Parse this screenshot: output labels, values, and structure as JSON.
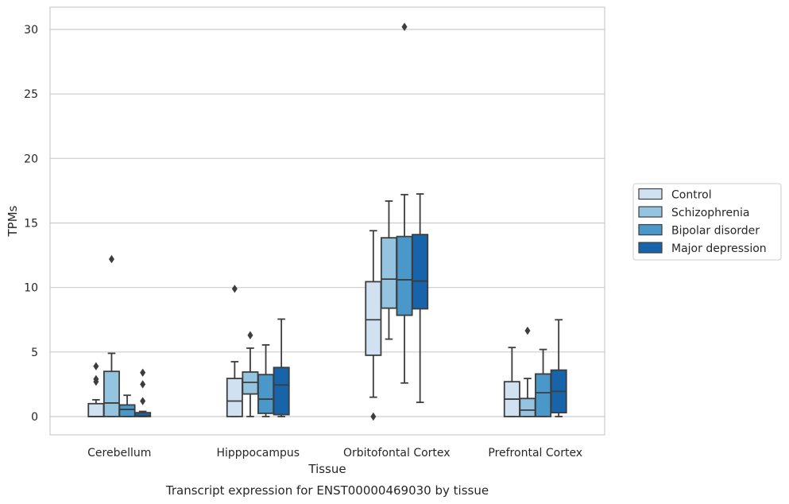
{
  "chart_data": {
    "type": "box",
    "caption": "Transcript expression for ENST00000469030 by tissue",
    "xlabel": "Tissue",
    "ylabel": "TPMs",
    "ylim": [
      -1.5,
      31.8
    ],
    "yticks": [
      0,
      5,
      10,
      15,
      20,
      25,
      30
    ],
    "grid": "horizontal",
    "legend_position": "right",
    "categories": [
      "Cerebellum",
      "Hipppocampus",
      "Orbitofontal Cortex",
      "Prefrontal Cortex"
    ],
    "series": [
      {
        "name": "Control",
        "color": "#d0e1f2",
        "boxes": [
          {
            "whislo": 0.0,
            "q1": 0.0,
            "med": 0.0,
            "q3": 1.0,
            "whishi": 1.3,
            "fliers": [
              2.7,
              2.9,
              3.9
            ]
          },
          {
            "whislo": 0.0,
            "q1": 0.0,
            "med": 1.2,
            "q3": 2.95,
            "whishi": 4.25,
            "fliers": [
              9.9
            ]
          },
          {
            "whislo": 1.5,
            "q1": 4.75,
            "med": 7.5,
            "q3": 10.45,
            "whishi": 14.4,
            "fliers": [
              0.0
            ]
          },
          {
            "whislo": 0.0,
            "q1": 0.0,
            "med": 1.35,
            "q3": 2.7,
            "whishi": 5.35,
            "fliers": []
          }
        ]
      },
      {
        "name": "Schizophrenia",
        "color": "#94c4df",
        "boxes": [
          {
            "whislo": 0.0,
            "q1": 0.0,
            "med": 1.05,
            "q3": 3.5,
            "whishi": 4.9,
            "fliers": [
              12.2
            ]
          },
          {
            "whislo": 0.0,
            "q1": 1.75,
            "med": 2.65,
            "q3": 3.45,
            "whishi": 5.3,
            "fliers": [
              6.3
            ]
          },
          {
            "whislo": 6.0,
            "q1": 8.4,
            "med": 10.65,
            "q3": 13.85,
            "whishi": 16.7,
            "fliers": []
          },
          {
            "whislo": 0.0,
            "q1": 0.0,
            "med": 0.5,
            "q3": 1.4,
            "whishi": 2.95,
            "fliers": [
              6.65
            ]
          }
        ]
      },
      {
        "name": "Bipolar disorder",
        "color": "#4a98c9",
        "boxes": [
          {
            "whislo": 0.0,
            "q1": 0.0,
            "med": 0.55,
            "q3": 0.9,
            "whishi": 1.65,
            "fliers": []
          },
          {
            "whislo": 0.0,
            "q1": 0.25,
            "med": 1.35,
            "q3": 3.25,
            "whishi": 5.55,
            "fliers": []
          },
          {
            "whislo": 2.6,
            "q1": 7.85,
            "med": 10.6,
            "q3": 13.95,
            "whishi": 17.2,
            "fliers": [
              30.2
            ]
          },
          {
            "whislo": 0.0,
            "q1": 0.0,
            "med": 1.85,
            "q3": 3.3,
            "whishi": 5.2,
            "fliers": []
          }
        ]
      },
      {
        "name": "Major depression",
        "color": "#1764ab",
        "boxes": [
          {
            "whislo": 0.0,
            "q1": 0.0,
            "med": 0.05,
            "q3": 0.3,
            "whishi": 0.4,
            "fliers": [
              1.2,
              2.5,
              3.4
            ]
          },
          {
            "whislo": 0.0,
            "q1": 0.15,
            "med": 2.45,
            "q3": 3.8,
            "whishi": 7.55,
            "fliers": []
          },
          {
            "whislo": 1.1,
            "q1": 8.35,
            "med": 10.5,
            "q3": 14.1,
            "whishi": 17.25,
            "fliers": []
          },
          {
            "whislo": 0.0,
            "q1": 0.3,
            "med": 1.95,
            "q3": 3.6,
            "whishi": 7.5,
            "fliers": []
          }
        ]
      }
    ]
  }
}
